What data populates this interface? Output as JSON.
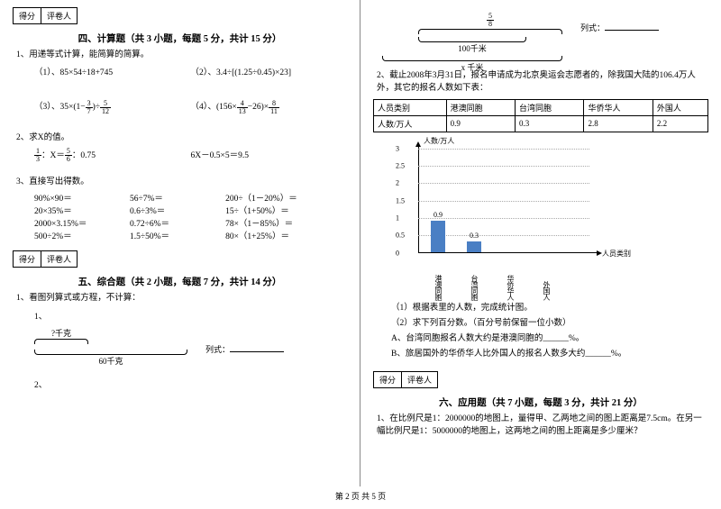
{
  "scorebox": {
    "score": "得分",
    "grader": "评卷人"
  },
  "section4": {
    "title": "四、计算题（共 3 小题，每题 5 分，共计 15 分）",
    "q1": "1、用递等式计算，能简算的简算。",
    "q1a": "（1）、85×54÷18+745",
    "q1b": "（2）、3.4÷[(1.25÷0.45)×23]",
    "q1c_prefix": "（3）、35×(1−",
    "q1c_f1n": "3",
    "q1c_f1d": "7",
    "q1c_mid": ")÷",
    "q1c_f2n": "5",
    "q1c_f2d": "12",
    "q1d_prefix": "（4）、(156×",
    "q1d_f1n": "4",
    "q1d_f1d": "13",
    "q1d_mid": "−26)×",
    "q1d_f2n": "8",
    "q1d_f2d": "11",
    "q2": "2、求X的值。",
    "q2a_f1n": "1",
    "q2a_f1d": "3",
    "q2a_mid": "：X＝",
    "q2a_f2n": "5",
    "q2a_f2d": "6",
    "q2a_suffix": "：0.75",
    "q2b": "6X－0.5×5＝9.5",
    "q3": "3、直接写出得数。",
    "q3rows": [
      [
        "90%×90＝",
        "56÷7%＝",
        "200÷（1－20%）＝"
      ],
      [
        "20×35%＝",
        "0.6÷3%＝",
        "15÷（1+50%）＝"
      ],
      [
        "2000×3.15%＝",
        "0.72÷6%＝",
        "78×（1－85%）＝"
      ],
      [
        "500÷2%＝",
        "1.5÷50%＝",
        "80×（1+25%）＝"
      ]
    ]
  },
  "section5": {
    "title": "五、综合题（共 2 小题，每题 7 分，共计 14 分）",
    "q1": "1、看图列算式或方程，不计算：",
    "sub1": "1、",
    "top_label": "?千克",
    "bottom_label": "60千克",
    "lieshi": "列式：",
    "sub2": "2、"
  },
  "right_diagram": {
    "top_frac_n": "5",
    "top_frac_d": "8",
    "inner_label": "100千米",
    "bottom_label": "x 千米",
    "lieshi": "列式："
  },
  "rq2": {
    "text": "2、截止2008年3月31日，报名申请成为北京奥运会志愿者的，除我国大陆的106.4万人外，其它的报名人数如下表：",
    "headers": [
      "人员类别",
      "港澳同胞",
      "台湾同胞",
      "华侨华人",
      "外国人"
    ],
    "row_label": "人数/万人",
    "values": [
      "0.9",
      "0.3",
      "2.8",
      "2.2"
    ]
  },
  "chart": {
    "y_title": "人数/万人",
    "x_title": "人员类别",
    "y_max": 3,
    "y_step": 0.5,
    "y_ticks": [
      "3",
      "2.5",
      "2",
      "1.5",
      "1",
      "0.5",
      "0"
    ],
    "categories": [
      "港澳同胞",
      "台湾同胞",
      "华侨华人",
      "外国人"
    ],
    "bar_values": [
      0.9,
      0.3,
      null,
      null
    ],
    "bar_value_labels": [
      "0.9",
      "0.3",
      "",
      ""
    ],
    "bar_color": "#4a7fc4",
    "grid_color": "#aaaaaa",
    "background": "#ffffff"
  },
  "rq2_sub": {
    "a": "（1）根据表里的人数，完成统计图。",
    "b": "（2）求下列百分数。（百分号前保留一位小数）",
    "c": "A、台湾同胞报名人数大约是港澳同胞的______%。",
    "d": "B、旅居国外的华侨华人比外国人的报名人数多大约______%。"
  },
  "section6": {
    "title": "六、应用题（共 7 小题，每题 3 分，共计 21 分）",
    "q1": "1、在比例尺是1：2000000的地图上，量得甲、乙两地之间的图上距离是7.5cm。在另一幅比例尺是1：5000000的地图上，这两地之间的图上距离是多少厘米？"
  },
  "footer": "第 2 页 共 5 页"
}
